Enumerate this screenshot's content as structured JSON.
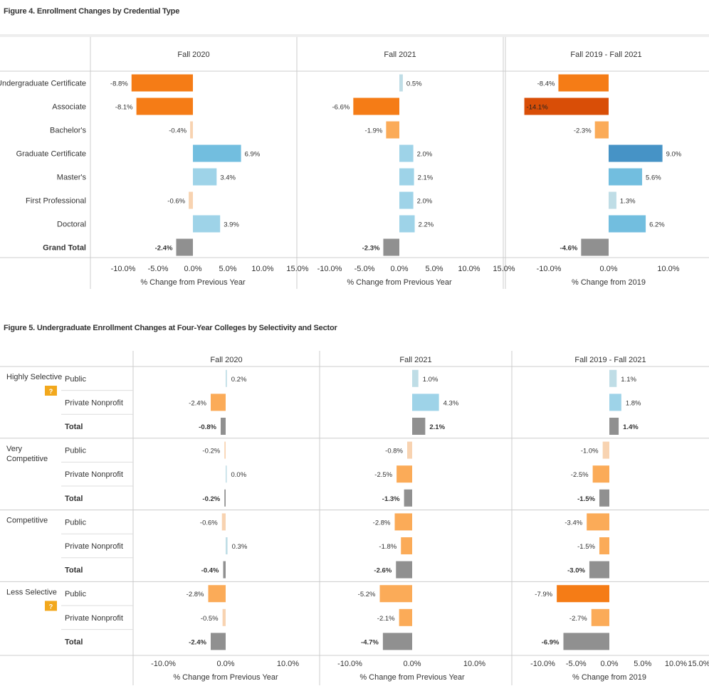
{
  "fig4": {
    "title": "Figure 4. Enrollment Changes by Credential Type",
    "chart_data": {
      "type": "bar",
      "orientation": "horizontal",
      "categories": [
        "Undergraduate Certificate",
        "Associate",
        "Bachelor's",
        "Graduate Certificate",
        "Master's",
        "First Professional",
        "Doctoral",
        "Grand Total"
      ],
      "series": [
        {
          "name": "Fall 2020",
          "values": [
            -8.8,
            -8.1,
            -0.4,
            6.9,
            3.4,
            -0.6,
            3.9,
            -2.4
          ],
          "labels": [
            "-8.8%",
            "-8.1%",
            "-0.4%",
            "6.9%",
            "3.4%",
            "-0.6%",
            "3.9%",
            "-2.4%"
          ]
        },
        {
          "name": "Fall 2021",
          "values": [
            0.5,
            -6.6,
            -1.9,
            2.0,
            2.1,
            2.0,
            2.2,
            -2.3
          ],
          "labels": [
            "0.5%",
            "-6.6%",
            "-1.9%",
            "2.0%",
            "2.1%",
            "2.0%",
            "2.2%",
            "-2.3%"
          ]
        },
        {
          "name": "Fall 2019 - Fall 2021",
          "values": [
            -8.4,
            -14.1,
            -2.3,
            9.0,
            5.6,
            1.3,
            6.2,
            -4.6
          ],
          "labels": [
            "-8.4%",
            "-14.1%",
            "-2.3%",
            "9.0%",
            "5.6%",
            "1.3%",
            "6.2%",
            "-4.6%"
          ]
        }
      ],
      "axes": [
        {
          "ticks": [
            "-10.0%",
            "-5.0%",
            "0.0%",
            "5.0%",
            "10.0%",
            "15.0%"
          ],
          "xlabel": "% Change from Previous Year",
          "xlim": [
            -15,
            15
          ]
        },
        {
          "ticks": [
            "-10.0%",
            "-5.0%",
            "0.0%",
            "5.0%",
            "10.0%",
            "15.0%"
          ],
          "xlabel": "% Change from Previous Year",
          "xlim": [
            -15,
            15
          ]
        },
        {
          "ticks": [
            "-10.0%",
            "0.0%",
            "10.0%"
          ],
          "xlabel": "% Change from 2019",
          "xlim": [
            -15,
            15
          ]
        }
      ],
      "total_row": "Grand Total"
    }
  },
  "fig5": {
    "title": "Figure 5. Undergraduate Enrollment Changes at Four-Year Colleges by Selectivity and Sector",
    "chart_data": {
      "type": "bar",
      "orientation": "horizontal",
      "groups": [
        {
          "name": "Highly Selective",
          "badge": "?",
          "rows": [
            "Public",
            "Private Nonprofit",
            "Total"
          ]
        },
        {
          "name": "Very Competitive",
          "rows": [
            "Public",
            "Private Nonprofit",
            "Total"
          ]
        },
        {
          "name": "Competitive",
          "rows": [
            "Public",
            "Private Nonprofit",
            "Total"
          ]
        },
        {
          "name": "Less Selective",
          "badge": "?",
          "rows": [
            "Public",
            "Private Nonprofit",
            "Total"
          ]
        }
      ],
      "series": [
        {
          "name": "Fall 2020",
          "values": [
            0.2,
            -2.4,
            -0.8,
            -0.2,
            0.0,
            -0.2,
            -0.6,
            0.3,
            -0.4,
            -2.8,
            -0.5,
            -2.4
          ],
          "labels": [
            "0.2%",
            "-2.4%",
            "-0.8%",
            "-0.2%",
            "0.0%",
            "-0.2%",
            "-0.6%",
            "0.3%",
            "-0.4%",
            "-2.8%",
            "-0.5%",
            "-2.4%"
          ]
        },
        {
          "name": "Fall 2021",
          "values": [
            1.0,
            4.3,
            2.1,
            -0.8,
            -2.5,
            -1.3,
            -2.8,
            -1.8,
            -2.6,
            -5.2,
            -2.1,
            -4.7
          ],
          "labels": [
            "1.0%",
            "4.3%",
            "2.1%",
            "-0.8%",
            "-2.5%",
            "-1.3%",
            "-2.8%",
            "-1.8%",
            "-2.6%",
            "-5.2%",
            "-2.1%",
            "-4.7%"
          ]
        },
        {
          "name": "Fall 2019 - Fall 2021",
          "values": [
            1.1,
            1.8,
            1.4,
            -1.0,
            -2.5,
            -1.5,
            -3.4,
            -1.5,
            -3.0,
            -7.9,
            -2.7,
            -6.9
          ],
          "labels": [
            "1.1%",
            "1.8%",
            "1.4%",
            "-1.0%",
            "-2.5%",
            "-1.5%",
            "-3.4%",
            "-1.5%",
            "-3.0%",
            "-7.9%",
            "-2.7%",
            "-6.9%"
          ]
        }
      ],
      "axes": [
        {
          "ticks": [
            "-10.0%",
            "0.0%",
            "10.0%"
          ],
          "xlabel": "% Change from Previous Year",
          "xlim": [
            -15,
            15
          ]
        },
        {
          "ticks": [
            "-10.0%",
            "0.0%",
            "10.0%"
          ],
          "xlabel": "% Change from Previous Year",
          "xlim": [
            -15,
            15
          ]
        },
        {
          "ticks": [
            "-10.0%",
            "-5.0%",
            "0.0%",
            "5.0%",
            "10.0%",
            "15.0%"
          ],
          "xlabel": "% Change from 2019",
          "xlim": [
            -15,
            15
          ]
        }
      ]
    }
  },
  "colors": {
    "neg_strong": "#d94e07",
    "neg_mid": "#f57c16",
    "neg_light": "#fbab58",
    "neg_pale": "#f8d3b1",
    "pos_strong": "#4693c6",
    "pos_mid": "#72bedf",
    "pos_light": "#9ed3e8",
    "pos_pale": "#bfdde6",
    "total": "#909090",
    "badge": "#f2a81d"
  }
}
